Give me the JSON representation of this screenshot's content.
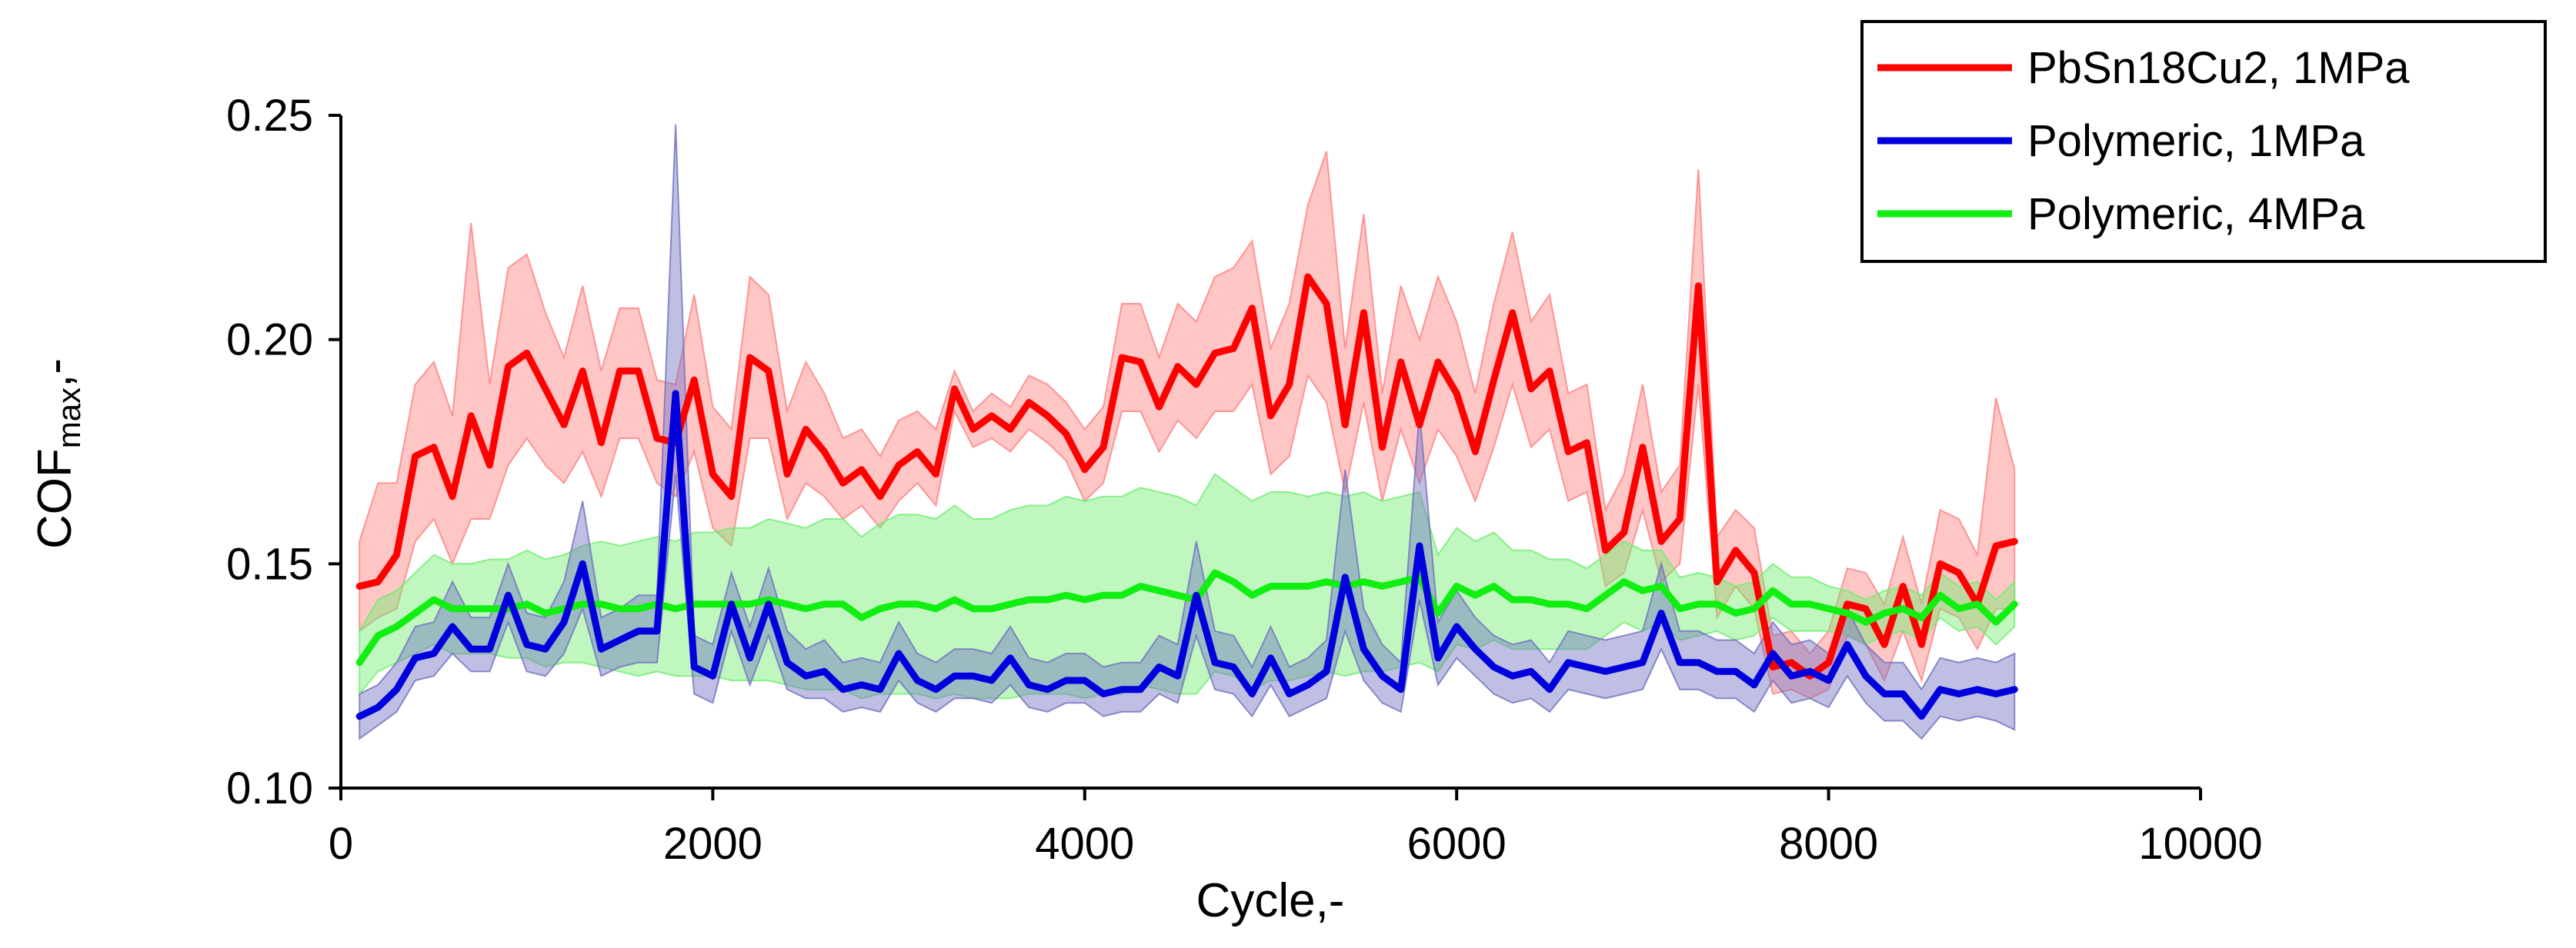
{
  "chart_data": {
    "type": "line",
    "title": "",
    "xlabel": "Cycle,-",
    "ylabel_main": "COF",
    "ylabel_sub": "max",
    "ylabel_suffix": ",-",
    "xlim": [
      0,
      10000
    ],
    "ylim": [
      0.1,
      0.25
    ],
    "xticks": [
      0,
      2000,
      4000,
      6000,
      8000,
      10000
    ],
    "xtick_labels": [
      "0",
      "2000",
      "4000",
      "6000",
      "8000",
      "10000"
    ],
    "yticks": [
      0.1,
      0.15,
      0.2,
      0.25
    ],
    "ytick_labels": [
      "0.10",
      "0.15",
      "0.20",
      "0.25"
    ],
    "grid": false,
    "legend_position": "top-right",
    "x": [
      100,
      200,
      300,
      400,
      500,
      600,
      700,
      800,
      900,
      1000,
      1100,
      1200,
      1300,
      1400,
      1500,
      1600,
      1700,
      1800,
      1900,
      2000,
      2100,
      2200,
      2300,
      2400,
      2500,
      2600,
      2700,
      2800,
      2900,
      3000,
      3100,
      3200,
      3300,
      3400,
      3500,
      3600,
      3700,
      3800,
      3900,
      4000,
      4100,
      4200,
      4300,
      4400,
      4500,
      4600,
      4700,
      4800,
      4900,
      5000,
      5100,
      5200,
      5300,
      5400,
      5500,
      5600,
      5700,
      5800,
      5900,
      6000,
      6100,
      6200,
      6300,
      6400,
      6500,
      6600,
      6700,
      6800,
      6900,
      7000,
      7100,
      7200,
      7300,
      7400,
      7500,
      7600,
      7700,
      7800,
      7900,
      8000,
      8100,
      8200,
      8300,
      8400,
      8500,
      8600,
      8700,
      8800,
      8900,
      9000
    ],
    "series": [
      {
        "name": "PbSn18Cu2, 1MPa",
        "color": "#ff0000",
        "band_color": "#ff8080",
        "values": [
          0.145,
          0.146,
          0.152,
          0.174,
          0.176,
          0.165,
          0.183,
          0.172,
          0.194,
          0.197,
          0.189,
          0.181,
          0.193,
          0.177,
          0.193,
          0.193,
          0.178,
          0.177,
          0.191,
          0.17,
          0.165,
          0.196,
          0.193,
          0.17,
          0.18,
          0.175,
          0.168,
          0.171,
          0.165,
          0.172,
          0.175,
          0.17,
          0.189,
          0.18,
          0.183,
          0.18,
          0.186,
          0.183,
          0.179,
          0.171,
          0.176,
          0.196,
          0.195,
          0.185,
          0.194,
          0.19,
          0.197,
          0.198,
          0.207,
          0.183,
          0.19,
          0.214,
          0.208,
          0.181,
          0.206,
          0.176,
          0.195,
          0.181,
          0.195,
          0.188,
          0.175,
          0.191,
          0.206,
          0.189,
          0.193,
          0.175,
          0.177,
          0.153,
          0.157,
          0.176,
          0.155,
          0.16,
          0.212,
          0.146,
          0.153,
          0.148,
          0.127,
          0.128,
          0.125,
          0.128,
          0.141,
          0.14,
          0.132,
          0.145,
          0.132,
          0.15,
          0.148,
          0.141,
          0.154,
          0.155
        ],
        "lower": [
          0.135,
          0.138,
          0.14,
          0.155,
          0.16,
          0.15,
          0.16,
          0.16,
          0.172,
          0.178,
          0.172,
          0.168,
          0.175,
          0.165,
          0.178,
          0.178,
          0.168,
          0.165,
          0.175,
          0.158,
          0.154,
          0.178,
          0.178,
          0.16,
          0.168,
          0.165,
          0.16,
          0.163,
          0.158,
          0.164,
          0.168,
          0.163,
          0.184,
          0.176,
          0.178,
          0.175,
          0.18,
          0.177,
          0.173,
          0.164,
          0.168,
          0.184,
          0.184,
          0.175,
          0.182,
          0.178,
          0.184,
          0.184,
          0.19,
          0.17,
          0.174,
          0.192,
          0.186,
          0.166,
          0.186,
          0.164,
          0.18,
          0.168,
          0.18,
          0.174,
          0.164,
          0.176,
          0.19,
          0.176,
          0.18,
          0.164,
          0.166,
          0.145,
          0.148,
          0.162,
          0.146,
          0.15,
          0.19,
          0.138,
          0.145,
          0.14,
          0.121,
          0.122,
          0.12,
          0.122,
          0.134,
          0.132,
          0.124,
          0.135,
          0.124,
          0.14,
          0.138,
          0.131,
          0.14,
          0.14
        ],
        "upper": [
          0.155,
          0.168,
          0.168,
          0.19,
          0.195,
          0.183,
          0.226,
          0.19,
          0.216,
          0.219,
          0.206,
          0.196,
          0.212,
          0.193,
          0.207,
          0.207,
          0.191,
          0.19,
          0.21,
          0.185,
          0.18,
          0.214,
          0.21,
          0.184,
          0.195,
          0.188,
          0.178,
          0.18,
          0.174,
          0.182,
          0.184,
          0.18,
          0.193,
          0.184,
          0.188,
          0.185,
          0.192,
          0.19,
          0.186,
          0.18,
          0.185,
          0.208,
          0.208,
          0.196,
          0.208,
          0.204,
          0.214,
          0.216,
          0.222,
          0.198,
          0.208,
          0.23,
          0.242,
          0.198,
          0.228,
          0.188,
          0.212,
          0.2,
          0.214,
          0.204,
          0.188,
          0.208,
          0.224,
          0.204,
          0.21,
          0.188,
          0.19,
          0.162,
          0.17,
          0.19,
          0.166,
          0.172,
          0.238,
          0.156,
          0.162,
          0.158,
          0.134,
          0.135,
          0.13,
          0.135,
          0.149,
          0.148,
          0.141,
          0.156,
          0.141,
          0.162,
          0.16,
          0.152,
          0.187,
          0.171
        ]
      },
      {
        "name": "Polymeric, 1MPa",
        "color": "#0000dd",
        "band_color": "#7070c0",
        "values": [
          0.116,
          0.118,
          0.122,
          0.129,
          0.13,
          0.136,
          0.131,
          0.131,
          0.143,
          0.132,
          0.131,
          0.137,
          0.15,
          0.131,
          0.133,
          0.135,
          0.135,
          0.188,
          0.127,
          0.125,
          0.141,
          0.129,
          0.141,
          0.128,
          0.125,
          0.126,
          0.122,
          0.123,
          0.122,
          0.13,
          0.124,
          0.122,
          0.125,
          0.125,
          0.124,
          0.129,
          0.123,
          0.122,
          0.124,
          0.124,
          0.121,
          0.122,
          0.122,
          0.127,
          0.125,
          0.143,
          0.128,
          0.127,
          0.121,
          0.129,
          0.121,
          0.123,
          0.126,
          0.147,
          0.131,
          0.125,
          0.122,
          0.154,
          0.129,
          0.136,
          0.131,
          0.127,
          0.125,
          0.126,
          0.122,
          0.128,
          0.127,
          0.126,
          0.127,
          0.128,
          0.139,
          0.128,
          0.128,
          0.126,
          0.126,
          0.123,
          0.13,
          0.125,
          0.126,
          0.124,
          0.132,
          0.125,
          0.121,
          0.121,
          0.116,
          0.122,
          0.121,
          0.122,
          0.121,
          0.122
        ],
        "lower": [
          0.111,
          0.114,
          0.117,
          0.124,
          0.125,
          0.13,
          0.126,
          0.126,
          0.137,
          0.126,
          0.125,
          0.13,
          0.14,
          0.125,
          0.127,
          0.128,
          0.128,
          0.17,
          0.121,
          0.119,
          0.135,
          0.123,
          0.134,
          0.122,
          0.12,
          0.12,
          0.117,
          0.118,
          0.117,
          0.124,
          0.119,
          0.117,
          0.12,
          0.12,
          0.119,
          0.123,
          0.118,
          0.117,
          0.119,
          0.119,
          0.116,
          0.117,
          0.117,
          0.121,
          0.119,
          0.134,
          0.122,
          0.121,
          0.116,
          0.123,
          0.116,
          0.118,
          0.12,
          0.135,
          0.124,
          0.119,
          0.117,
          0.142,
          0.123,
          0.129,
          0.125,
          0.121,
          0.119,
          0.12,
          0.117,
          0.122,
          0.121,
          0.12,
          0.121,
          0.122,
          0.131,
          0.122,
          0.122,
          0.12,
          0.12,
          0.117,
          0.124,
          0.119,
          0.12,
          0.118,
          0.125,
          0.119,
          0.115,
          0.115,
          0.111,
          0.116,
          0.115,
          0.116,
          0.115,
          0.113
        ],
        "upper": [
          0.121,
          0.123,
          0.128,
          0.136,
          0.137,
          0.146,
          0.138,
          0.138,
          0.15,
          0.139,
          0.138,
          0.146,
          0.164,
          0.138,
          0.14,
          0.143,
          0.143,
          0.248,
          0.134,
          0.132,
          0.148,
          0.136,
          0.149,
          0.135,
          0.131,
          0.133,
          0.128,
          0.129,
          0.128,
          0.137,
          0.13,
          0.128,
          0.131,
          0.131,
          0.13,
          0.136,
          0.129,
          0.128,
          0.13,
          0.13,
          0.127,
          0.128,
          0.128,
          0.134,
          0.132,
          0.155,
          0.135,
          0.134,
          0.127,
          0.136,
          0.127,
          0.129,
          0.133,
          0.171,
          0.14,
          0.132,
          0.128,
          0.184,
          0.137,
          0.144,
          0.138,
          0.134,
          0.132,
          0.133,
          0.128,
          0.135,
          0.134,
          0.133,
          0.134,
          0.135,
          0.15,
          0.135,
          0.135,
          0.133,
          0.133,
          0.13,
          0.137,
          0.132,
          0.133,
          0.13,
          0.14,
          0.132,
          0.128,
          0.128,
          0.122,
          0.129,
          0.128,
          0.129,
          0.128,
          0.13
        ]
      },
      {
        "name": "Polymeric, 4MPa",
        "color": "#11ee11",
        "band_color": "#70ee70",
        "values": [
          0.128,
          0.134,
          0.136,
          0.139,
          0.142,
          0.14,
          0.14,
          0.14,
          0.14,
          0.141,
          0.139,
          0.14,
          0.141,
          0.141,
          0.14,
          0.14,
          0.141,
          0.14,
          0.141,
          0.141,
          0.141,
          0.141,
          0.142,
          0.141,
          0.14,
          0.141,
          0.141,
          0.138,
          0.14,
          0.141,
          0.141,
          0.14,
          0.142,
          0.14,
          0.14,
          0.141,
          0.142,
          0.142,
          0.143,
          0.142,
          0.143,
          0.143,
          0.145,
          0.144,
          0.143,
          0.142,
          0.148,
          0.146,
          0.143,
          0.145,
          0.145,
          0.145,
          0.146,
          0.145,
          0.146,
          0.145,
          0.146,
          0.147,
          0.139,
          0.145,
          0.143,
          0.145,
          0.142,
          0.142,
          0.141,
          0.141,
          0.14,
          0.143,
          0.146,
          0.144,
          0.145,
          0.14,
          0.141,
          0.141,
          0.139,
          0.14,
          0.144,
          0.141,
          0.141,
          0.14,
          0.139,
          0.137,
          0.139,
          0.14,
          0.138,
          0.143,
          0.14,
          0.141,
          0.137,
          0.141
        ],
        "lower": [
          0.121,
          0.126,
          0.128,
          0.13,
          0.132,
          0.13,
          0.13,
          0.13,
          0.129,
          0.129,
          0.127,
          0.128,
          0.128,
          0.127,
          0.126,
          0.125,
          0.126,
          0.125,
          0.125,
          0.125,
          0.124,
          0.124,
          0.124,
          0.123,
          0.122,
          0.122,
          0.122,
          0.12,
          0.121,
          0.121,
          0.121,
          0.12,
          0.121,
          0.12,
          0.12,
          0.12,
          0.121,
          0.121,
          0.121,
          0.12,
          0.121,
          0.121,
          0.123,
          0.122,
          0.121,
          0.121,
          0.126,
          0.125,
          0.122,
          0.124,
          0.124,
          0.125,
          0.126,
          0.125,
          0.126,
          0.126,
          0.127,
          0.128,
          0.126,
          0.132,
          0.131,
          0.133,
          0.131,
          0.131,
          0.131,
          0.131,
          0.131,
          0.134,
          0.137,
          0.135,
          0.137,
          0.133,
          0.134,
          0.135,
          0.133,
          0.134,
          0.138,
          0.135,
          0.135,
          0.135,
          0.134,
          0.132,
          0.134,
          0.135,
          0.133,
          0.138,
          0.135,
          0.136,
          0.132,
          0.136
        ],
        "upper": [
          0.135,
          0.142,
          0.144,
          0.148,
          0.152,
          0.15,
          0.15,
          0.151,
          0.151,
          0.153,
          0.151,
          0.152,
          0.154,
          0.155,
          0.154,
          0.155,
          0.156,
          0.155,
          0.157,
          0.157,
          0.158,
          0.158,
          0.16,
          0.159,
          0.158,
          0.16,
          0.16,
          0.156,
          0.159,
          0.161,
          0.161,
          0.16,
          0.163,
          0.16,
          0.16,
          0.162,
          0.163,
          0.163,
          0.165,
          0.164,
          0.165,
          0.165,
          0.167,
          0.166,
          0.165,
          0.163,
          0.17,
          0.167,
          0.164,
          0.166,
          0.166,
          0.165,
          0.166,
          0.165,
          0.166,
          0.164,
          0.165,
          0.166,
          0.152,
          0.158,
          0.155,
          0.157,
          0.153,
          0.153,
          0.151,
          0.151,
          0.149,
          0.152,
          0.155,
          0.153,
          0.153,
          0.147,
          0.148,
          0.147,
          0.145,
          0.146,
          0.15,
          0.147,
          0.147,
          0.145,
          0.144,
          0.142,
          0.144,
          0.145,
          0.143,
          0.148,
          0.145,
          0.146,
          0.142,
          0.146
        ]
      }
    ]
  }
}
